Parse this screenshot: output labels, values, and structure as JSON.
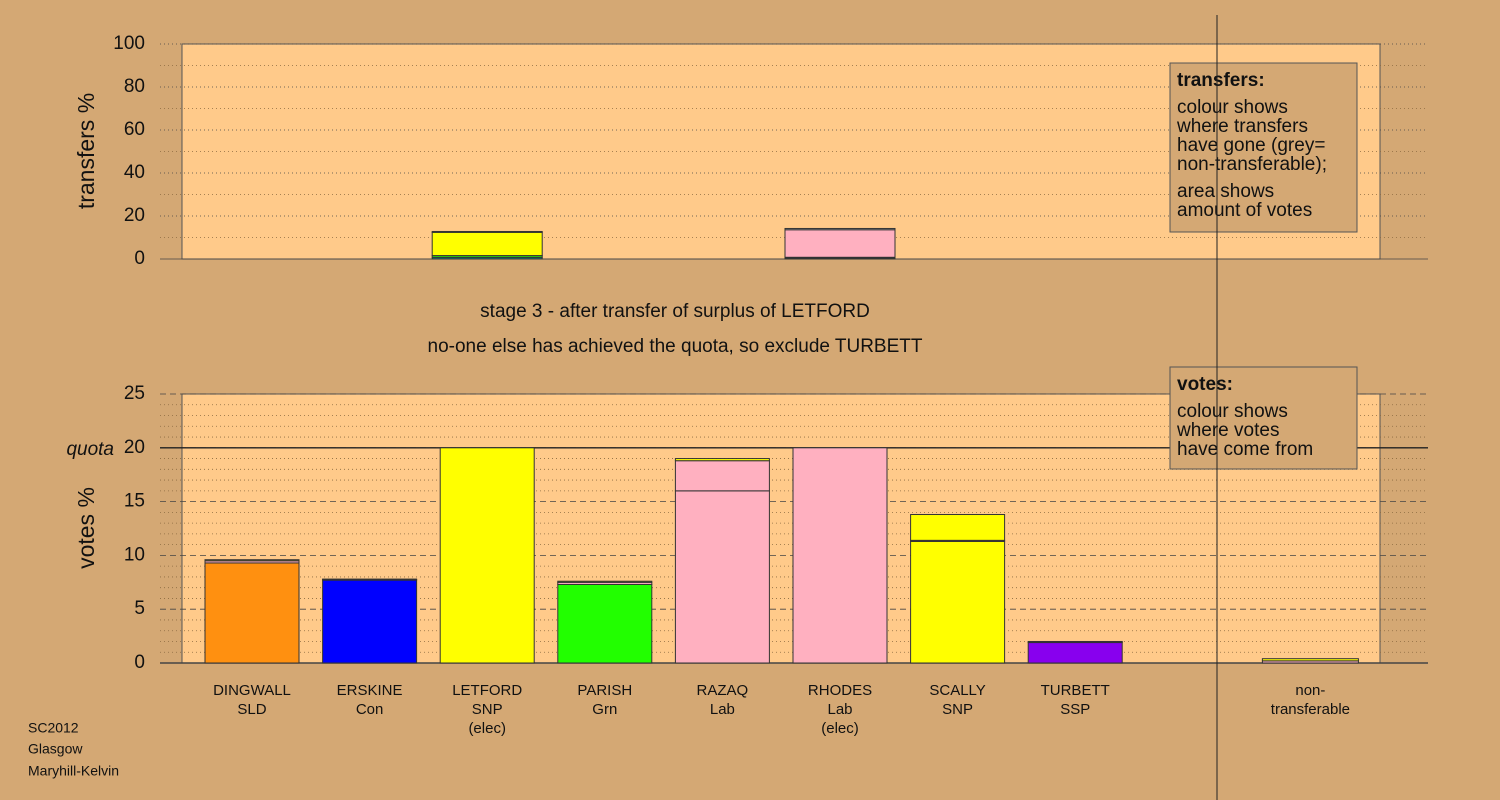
{
  "chart_data": [
    {
      "type": "bar",
      "ylabel": "transfers %",
      "ylim": [
        0,
        100
      ],
      "yticks": [
        0,
        20,
        40,
        60,
        80,
        100
      ],
      "minor_yticks": [
        10,
        30,
        50,
        70,
        90
      ],
      "grid": true,
      "stacked": true,
      "series": [
        {
          "color": "#008080",
          "values": [
            null,
            null,
            0.8,
            null,
            null,
            0.5,
            null,
            null,
            null
          ]
        },
        {
          "color": "#22ff00",
          "values": [
            null,
            null,
            0.8,
            null,
            null,
            0.3,
            null,
            null,
            null
          ]
        },
        {
          "color": "#ffff00",
          "values": [
            null,
            null,
            10.8,
            null,
            null,
            null,
            null,
            null,
            null
          ]
        },
        {
          "color": "#ffb0c0",
          "values": [
            null,
            null,
            null,
            null,
            null,
            12.8,
            null,
            null,
            null
          ]
        },
        {
          "color": "#c0c0c0",
          "values": [
            null,
            null,
            0.4,
            null,
            null,
            0.6,
            null,
            null,
            null
          ]
        }
      ],
      "note": {
        "title": "transfers:",
        "paragraphs": [
          [
            "colour shows",
            "where transfers",
            "have gone (grey=",
            "non-transferable);"
          ],
          [
            "area shows",
            "amount of votes"
          ]
        ]
      }
    },
    {
      "type": "bar",
      "title": "stage 3 - after transfer of surplus of LETFORD",
      "subtitle": "no-one else has achieved the quota, so exclude TURBETT",
      "ylabel": "votes %",
      "ylim": [
        0,
        25
      ],
      "yticks": [
        0,
        5,
        10,
        15,
        20,
        25
      ],
      "minor_yticks": [
        1,
        2,
        3,
        4,
        6,
        7,
        8,
        9,
        11,
        12,
        13,
        14,
        16,
        17,
        18,
        19,
        21,
        22,
        23,
        24
      ],
      "grid": true,
      "stacked": true,
      "quota": {
        "value": 20,
        "label": "quota"
      },
      "categories": [
        [
          "DINGWALL",
          "SLD"
        ],
        [
          "ERSKINE",
          "Con"
        ],
        [
          "LETFORD",
          "SNP",
          "(elec)"
        ],
        [
          "PARISH",
          "Grn"
        ],
        [
          "RAZAQ",
          "Lab"
        ],
        [
          "RHODES",
          "Lab",
          "(elec)"
        ],
        [
          "SCALLY",
          "SNP"
        ],
        [
          "TURBETT",
          "SSP"
        ],
        [
          "non-",
          "transferable"
        ]
      ],
      "series": [
        {
          "colors": [
            "#ff9010",
            "#0000ff",
            "#ffff00",
            "#22ff00",
            "#ffb0c0",
            "#ffb0c0",
            "#ffff00",
            "#8800ee",
            "#c8b080"
          ],
          "values": [
            9.3,
            7.7,
            20,
            7.3,
            16,
            20,
            11.3,
            1.9,
            0
          ]
        },
        {
          "color": "#ffb0c0",
          "values": [
            0.2,
            0.05,
            null,
            0.2,
            2.8,
            null,
            0.1,
            0.05,
            0.2
          ]
        },
        {
          "color": "#ffff00",
          "values": [
            0.1,
            0.05,
            null,
            0.1,
            0.2,
            null,
            2.4,
            0.05,
            0.2
          ]
        }
      ],
      "note": {
        "title": "votes:",
        "paragraphs": [
          [
            "colour shows",
            "where votes",
            "have come from"
          ]
        ]
      }
    }
  ],
  "footer": [
    "SC2012",
    "Glasgow",
    "Maryhill-Kelvin"
  ]
}
